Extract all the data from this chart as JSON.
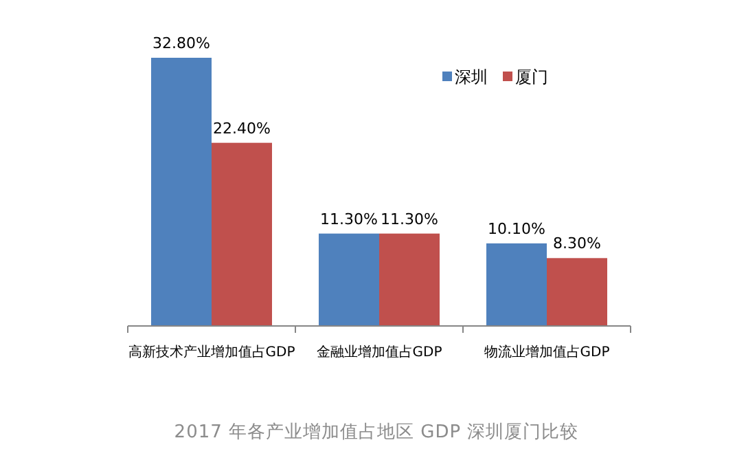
{
  "chart_data": {
    "type": "bar",
    "categories": [
      "高新技术产业增加值占GDP",
      "金融业增加值占GDP",
      "物流业增加值占GDP"
    ],
    "series": [
      {
        "name": "深圳",
        "color": "#4f81bd",
        "values": [
          32.8,
          11.3,
          10.1
        ],
        "value_labels": [
          "32.80%",
          "11.30%",
          "10.10%"
        ]
      },
      {
        "name": "厦门",
        "color": "#c0504d",
        "values": [
          22.4,
          11.3,
          8.3
        ],
        "value_labels": [
          "22.40%",
          "11.30%",
          "8.30%"
        ]
      }
    ],
    "legend": "top right",
    "annotations": [
      "2017 年各产业增加值占地区 GDP 深圳厦门比较"
    ]
  }
}
